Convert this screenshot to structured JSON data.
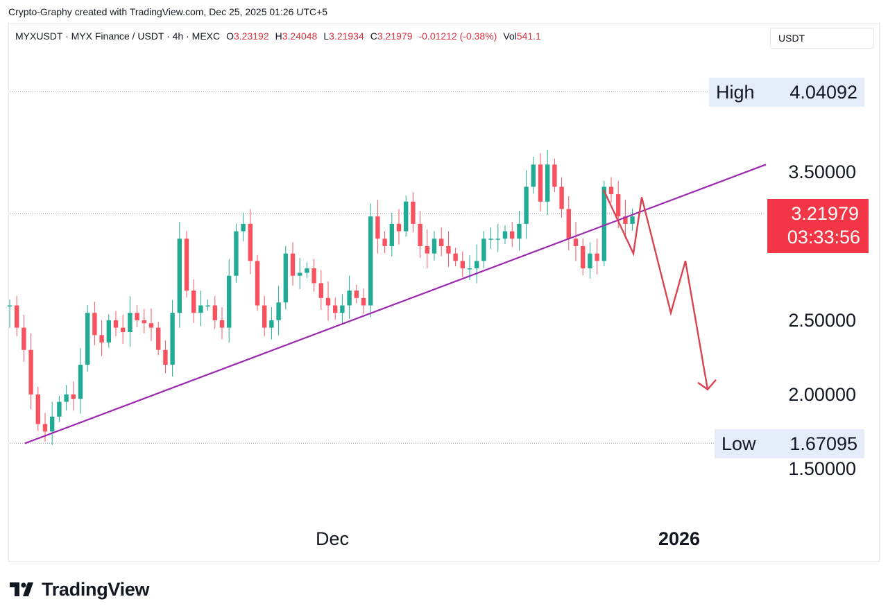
{
  "header": {
    "caption": "Crypto-Graphy created with TradingView.com, Dec 25, 2025 01:26 UTC+5"
  },
  "symbol": {
    "title": "MYXUSDT · MYX Finance / USDT · 4h · MEXC",
    "open_label": "O",
    "open": "3.23192",
    "high_label": "H",
    "high": "3.24048",
    "low_label": "L",
    "low": "3.21934",
    "close_label": "C",
    "close": "3.21979",
    "change": "-0.01212 (-0.38%)",
    "volume_label": "Vol",
    "volume": "541.1"
  },
  "currency_button": {
    "label": "USDT"
  },
  "price_axis": {
    "labels": [
      "3.50000",
      "2.50000",
      "2.00000",
      "1.50000"
    ]
  },
  "high_tag": {
    "name": "High",
    "value": "4.04092"
  },
  "low_tag": {
    "name": "Low",
    "value": "1.67095"
  },
  "last_price": {
    "value": "3.21979",
    "countdown": "03:33:56"
  },
  "time_axis": {
    "labels": [
      "Dec",
      "2026"
    ]
  },
  "logo": {
    "text": "TradingView"
  },
  "colors": {
    "up": "#22ab94",
    "down": "#f7525f",
    "trendline": "#9c27b0",
    "projection": "#d9434e",
    "last_price_bg": "#f23645",
    "tag_bg": "#e3ecf8"
  },
  "chart_data": {
    "type": "candlestick",
    "interval": "4h",
    "ylim": [
      1.5,
      4.1
    ],
    "high": 4.04092,
    "low": 1.67095,
    "last": 3.21979,
    "trendline": {
      "from": 1.67,
      "to": 3.55,
      "color": "#9c27b0"
    },
    "projection_path": [
      3.38,
      2.95,
      3.33,
      2.55,
      2.9,
      2.15
    ],
    "closes": [
      2.6,
      2.45,
      2.3,
      2.0,
      1.8,
      1.75,
      1.85,
      1.95,
      2.0,
      1.97,
      2.2,
      2.55,
      2.4,
      2.35,
      2.5,
      2.45,
      2.42,
      2.55,
      2.5,
      2.48,
      2.45,
      2.3,
      2.2,
      2.55,
      3.05,
      2.7,
      2.55,
      2.6,
      2.6,
      2.5,
      2.45,
      2.8,
      3.1,
      3.15,
      2.9,
      2.6,
      2.45,
      2.5,
      2.62,
      2.95,
      2.8,
      2.82,
      2.85,
      2.75,
      2.65,
      2.6,
      2.55,
      2.6,
      2.7,
      2.65,
      2.6,
      3.2,
      3.05,
      3.0,
      3.15,
      3.1,
      3.3,
      3.15,
      3.0,
      2.95,
      3.05,
      3.0,
      2.95,
      2.9,
      2.85,
      2.85,
      2.9,
      3.05,
      3.05,
      3.05,
      3.1,
      3.05,
      3.15,
      3.4,
      3.55,
      3.3,
      3.55,
      3.4,
      3.25,
      3.05,
      3.0,
      2.85,
      2.95,
      2.9,
      3.4,
      3.35,
      3.2,
      3.15,
      3.2
    ]
  }
}
